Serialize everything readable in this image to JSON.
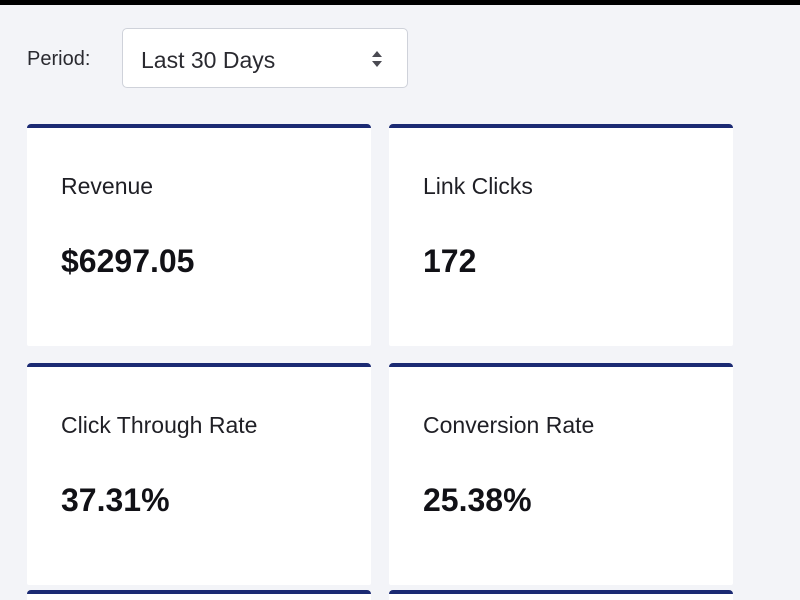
{
  "filter": {
    "label": "Period:",
    "selected": "Last 30 Days",
    "icon": "updown-chevron-icon"
  },
  "cards": [
    {
      "label": "Revenue",
      "value": "$6297.05"
    },
    {
      "label": "Link Clicks",
      "value": "172"
    },
    {
      "label": "Click Through Rate",
      "value": "37.31%"
    },
    {
      "label": "Conversion Rate",
      "value": "25.38%"
    }
  ],
  "colors": {
    "background": "#f3f4f8",
    "card_accent": "#1b2a73",
    "card_background": "#ffffff"
  }
}
